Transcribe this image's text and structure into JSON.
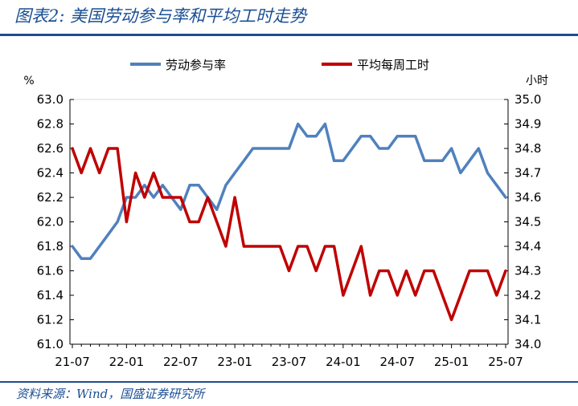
{
  "title": "图表2:  美国劳动参与率和平均工时走势",
  "source": "资料来源：Wind，国盛证券研究所",
  "chart_data": {
    "type": "line",
    "left_unit": "%",
    "right_unit": "小时",
    "left_ylim": [
      61.0,
      63.0
    ],
    "right_ylim": [
      34.0,
      35.0
    ],
    "left_ticks": [
      "63.0",
      "62.8",
      "62.6",
      "62.4",
      "62.2",
      "62.0",
      "61.8",
      "61.6",
      "61.4",
      "61.2",
      "61.0"
    ],
    "right_ticks": [
      "35.0",
      "34.9",
      "34.8",
      "34.7",
      "34.6",
      "34.5",
      "34.4",
      "34.3",
      "34.2",
      "34.1",
      "34.0"
    ],
    "x_tick_labels": [
      "21-07",
      "22-01",
      "22-07",
      "23-01",
      "23-07",
      "24-01",
      "24-07",
      "25-01",
      "25-07"
    ],
    "legend_position": "top",
    "grid": false,
    "x": [
      "21-07",
      "21-08",
      "21-09",
      "21-10",
      "21-11",
      "21-12",
      "22-01",
      "22-02",
      "22-03",
      "22-04",
      "22-05",
      "22-06",
      "22-07",
      "22-08",
      "22-09",
      "22-10",
      "22-11",
      "22-12",
      "23-01",
      "23-02",
      "23-03",
      "23-04",
      "23-05",
      "23-06",
      "23-07",
      "23-08",
      "23-09",
      "23-10",
      "23-11",
      "23-12",
      "24-01",
      "24-02",
      "24-03",
      "24-04",
      "24-05",
      "24-06",
      "24-07",
      "24-08",
      "24-09",
      "24-10",
      "24-11",
      "24-12",
      "25-01",
      "25-02",
      "25-03",
      "25-04",
      "25-05",
      "25-06",
      "25-07"
    ],
    "series": [
      {
        "name": "劳动参与率",
        "axis": "left",
        "color": "#4f81bd",
        "values": [
          61.8,
          61.7,
          61.7,
          61.8,
          61.9,
          62.0,
          62.2,
          62.2,
          62.3,
          62.2,
          62.3,
          62.2,
          62.1,
          62.3,
          62.3,
          62.2,
          62.1,
          62.3,
          62.4,
          62.5,
          62.6,
          62.6,
          62.6,
          62.6,
          62.6,
          62.8,
          62.7,
          62.7,
          62.8,
          62.5,
          62.5,
          62.6,
          62.7,
          62.7,
          62.6,
          62.6,
          62.7,
          62.7,
          62.7,
          62.5,
          62.5,
          62.5,
          62.6,
          62.4,
          62.5,
          62.6,
          62.4,
          62.3,
          62.2
        ]
      },
      {
        "name": "平均每周工时",
        "axis": "right",
        "color": "#c00000",
        "values": [
          34.8,
          34.7,
          34.8,
          34.7,
          34.8,
          34.8,
          34.5,
          34.7,
          34.6,
          34.7,
          34.6,
          34.6,
          34.6,
          34.5,
          34.5,
          34.6,
          34.5,
          34.4,
          34.6,
          34.4,
          34.4,
          34.4,
          34.4,
          34.4,
          34.3,
          34.4,
          34.4,
          34.3,
          34.4,
          34.4,
          34.2,
          34.3,
          34.4,
          34.2,
          34.3,
          34.3,
          34.2,
          34.3,
          34.2,
          34.3,
          34.3,
          34.2,
          34.1,
          34.2,
          34.3,
          34.3,
          34.3,
          34.2,
          34.3
        ]
      }
    ]
  }
}
